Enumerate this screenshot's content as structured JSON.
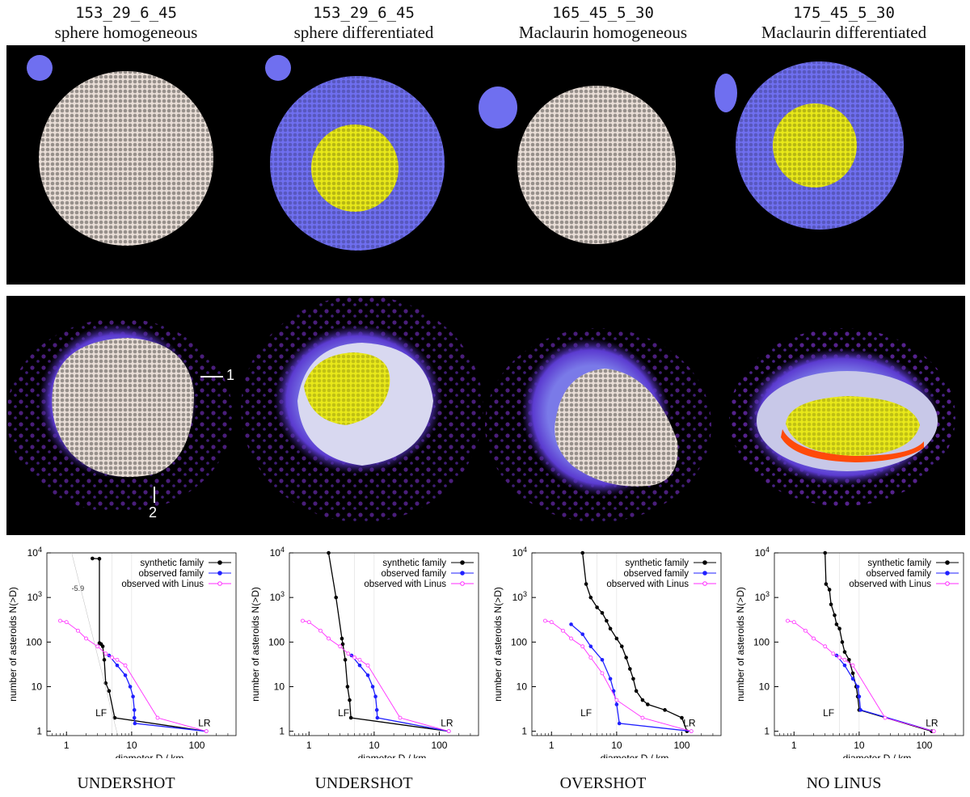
{
  "columns": [
    {
      "code": "153_29_6_45",
      "desc": "sphere homogeneous",
      "verdict": "UNDERSHOT"
    },
    {
      "code": "153_29_6_45",
      "desc": "sphere differentiated",
      "verdict": "UNDERSHOT"
    },
    {
      "code": "165_45_5_30",
      "desc": "Maclaurin homogeneous",
      "verdict": "OVERSHOT"
    },
    {
      "code": "175_45_5_30",
      "desc": "Maclaurin differentiated",
      "verdict": "NO LINUS"
    }
  ],
  "snapshot_labels": {
    "label1": "1",
    "label2": "2"
  },
  "colors": {
    "regolith": "#e8ddd6",
    "mantle": "#6f6ff0",
    "core": "#e8e81a",
    "debris": "#6a2bb0",
    "synthetic": "#000000",
    "observed": "#2020ff",
    "linus": "#ff2bff"
  },
  "chart_data": [
    {
      "type": "line",
      "xlabel": "diameter D / km",
      "ylabel": "number of asteroids N(>D)",
      "xscale": "log",
      "yscale": "log",
      "xlim": [
        0.5,
        400
      ],
      "ylim": [
        0.8,
        10000
      ],
      "xticks": [
        "1",
        "10",
        "100"
      ],
      "yticks": [
        "1",
        "10",
        "100",
        "10^3",
        "10^4"
      ],
      "legend": [
        "synthetic family",
        "observed family",
        "observed with Linus"
      ],
      "annotations": {
        "lf": "LF",
        "lr": "LR",
        "slope": "-5.9"
      },
      "series": [
        {
          "name": "synthetic family",
          "x": [
            2.5,
            3.2,
            3.2,
            3.4,
            3.6,
            3.8,
            4.0,
            4.5,
            5.5,
            140
          ],
          "y": [
            7500,
            7400,
            95,
            90,
            80,
            40,
            12,
            8,
            2,
            1
          ]
        },
        {
          "name": "observed family",
          "x": [
            4.5,
            6,
            8,
            9.5,
            10.5,
            11,
            11,
            11.2,
            140
          ],
          "y": [
            50,
            30,
            18,
            10,
            6,
            3,
            2,
            1.5,
            1
          ]
        },
        {
          "name": "observed with Linus",
          "x": [
            0.8,
            1.0,
            1.5,
            2.0,
            3.0,
            4.0,
            5.0,
            6.0,
            8.0,
            25,
            140
          ],
          "y": [
            300,
            280,
            180,
            120,
            80,
            55,
            45,
            40,
            30,
            2,
            1
          ]
        }
      ]
    },
    {
      "type": "line",
      "xlabel": "diameter D / km",
      "ylabel": "number of asteroids N(>D)",
      "xscale": "log",
      "yscale": "log",
      "xlim": [
        0.5,
        400
      ],
      "ylim": [
        0.8,
        10000
      ],
      "xticks": [
        "1",
        "10",
        "100"
      ],
      "yticks": [
        "1",
        "10",
        "100",
        "10^3",
        "10^4"
      ],
      "legend": [
        "synthetic family",
        "observed family",
        "observed with Linus"
      ],
      "annotations": {
        "lf": "LF",
        "lr": "LR"
      },
      "series": [
        {
          "name": "synthetic family",
          "x": [
            2.0,
            2.6,
            3.2,
            3.3,
            3.6,
            3.9,
            4.2,
            4.4,
            140
          ],
          "y": [
            10000,
            1000,
            120,
            90,
            40,
            10,
            5,
            2,
            1
          ]
        },
        {
          "name": "observed family",
          "x": [
            4.5,
            6,
            8,
            9.5,
            10.5,
            11,
            11.2,
            140
          ],
          "y": [
            50,
            30,
            18,
            10,
            6,
            3,
            2,
            1
          ]
        },
        {
          "name": "observed with Linus",
          "x": [
            0.8,
            1.0,
            1.5,
            2.0,
            3.0,
            4.0,
            5.0,
            6.0,
            8.0,
            25,
            140
          ],
          "y": [
            300,
            280,
            180,
            120,
            80,
            55,
            45,
            40,
            30,
            2,
            1
          ]
        }
      ]
    },
    {
      "type": "line",
      "xlabel": "diameter D / km",
      "ylabel": "number of asteroids N(>D)",
      "xscale": "log",
      "yscale": "log",
      "xlim": [
        0.5,
        400
      ],
      "ylim": [
        0.8,
        10000
      ],
      "xticks": [
        "1",
        "10",
        "100"
      ],
      "yticks": [
        "1",
        "10",
        "100",
        "10^3",
        "10^4"
      ],
      "legend": [
        "synthetic family",
        "observed family",
        "observed with Linus"
      ],
      "annotations": {
        "lf": "LF",
        "lr": "LR"
      },
      "series": [
        {
          "name": "synthetic family",
          "x": [
            3.0,
            3.4,
            4.0,
            5.0,
            6.0,
            7.0,
            8.0,
            10,
            12,
            14,
            16,
            18,
            20,
            25,
            30,
            55,
            100,
            120
          ],
          "y": [
            10000,
            2000,
            1000,
            600,
            450,
            300,
            200,
            120,
            80,
            45,
            25,
            15,
            8,
            5,
            4,
            3,
            2,
            1
          ]
        },
        {
          "name": "observed family",
          "x": [
            2.0,
            3.0,
            4.0,
            6.0,
            8.0,
            9.0,
            10,
            11,
            140
          ],
          "y": [
            250,
            150,
            80,
            40,
            15,
            8,
            4,
            1.5,
            1
          ]
        },
        {
          "name": "observed with Linus",
          "x": [
            0.8,
            1.0,
            1.5,
            2.0,
            3.0,
            4.0,
            6.0,
            10,
            25,
            140
          ],
          "y": [
            300,
            280,
            180,
            120,
            80,
            45,
            20,
            5,
            2,
            1
          ]
        }
      ]
    },
    {
      "type": "line",
      "xlabel": "diameter D / km",
      "ylabel": "number of asteroids N(>D)",
      "xscale": "log",
      "yscale": "log",
      "xlim": [
        0.5,
        400
      ],
      "ylim": [
        0.8,
        10000
      ],
      "xticks": [
        "1",
        "10",
        "100"
      ],
      "yticks": [
        "1",
        "10",
        "100",
        "10^3",
        "10^4"
      ],
      "legend": [
        "synthetic family",
        "observed family",
        "observed with Linus"
      ],
      "annotations": {
        "lf": "LF",
        "lr": "LR"
      },
      "series": [
        {
          "name": "synthetic family",
          "x": [
            3.0,
            3.1,
            3.5,
            3.7,
            4.2,
            4.5,
            5.0,
            5.5,
            6.0,
            7.0,
            8.0,
            9.0,
            9.5,
            10,
            130
          ],
          "y": [
            10000,
            2000,
            1500,
            700,
            400,
            250,
            200,
            100,
            60,
            40,
            20,
            10,
            6,
            3,
            1
          ]
        },
        {
          "name": "observed family",
          "x": [
            4.5,
            6.0,
            8.0,
            9.5,
            10,
            10.5,
            140
          ],
          "y": [
            50,
            30,
            15,
            10,
            6,
            3,
            1
          ]
        },
        {
          "name": "observed with Linus",
          "x": [
            0.8,
            1.0,
            1.5,
            2.0,
            3.0,
            4.0,
            5.0,
            6.0,
            8.0,
            25,
            140
          ],
          "y": [
            300,
            280,
            180,
            120,
            80,
            55,
            45,
            40,
            30,
            2,
            1
          ]
        }
      ]
    }
  ]
}
